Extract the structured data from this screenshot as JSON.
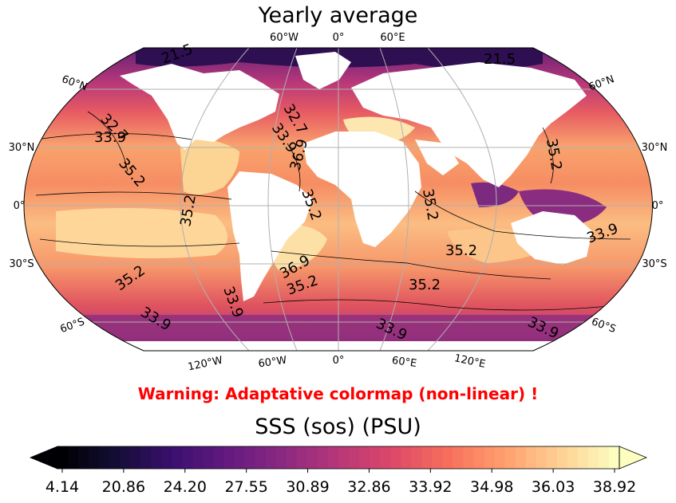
{
  "title": "Yearly average",
  "warning": {
    "text": "Warning: Adaptative colormap (non-linear) !",
    "color": "#ff0000"
  },
  "colorbar": {
    "title": "SSS (sos) (PSU)",
    "tick_labels": [
      "4.14",
      "20.86",
      "24.20",
      "27.55",
      "30.89",
      "32.86",
      "33.92",
      "34.98",
      "36.03",
      "38.92"
    ],
    "colormap": "magma",
    "extend": "both"
  },
  "map": {
    "projection": "Robinson",
    "variable": "sea surface salinity",
    "lon_labels_top": [
      "60°W",
      "0°",
      "60°E"
    ],
    "lon_labels_bottom": [
      "120°W",
      "60°W",
      "0°",
      "60°E",
      "120°E"
    ],
    "lat_labels_left": [
      "60°N",
      "30°N",
      "0°",
      "30°S",
      "60°S"
    ],
    "lat_labels_right": [
      "60°N",
      "30°N",
      "0°",
      "30°S",
      "60°S"
    ],
    "contour_labels": [
      "32.7",
      "33.9",
      "35.2",
      "35.2",
      "32.7",
      "33.9",
      "36.9",
      "35.2",
      "35.2",
      "35.2",
      "33.9",
      "35.2",
      "36.9",
      "35.2",
      "35.2",
      "33.9",
      "35.2",
      "33.9",
      "33.9",
      "33.9",
      "21.5",
      "21.5"
    ]
  }
}
